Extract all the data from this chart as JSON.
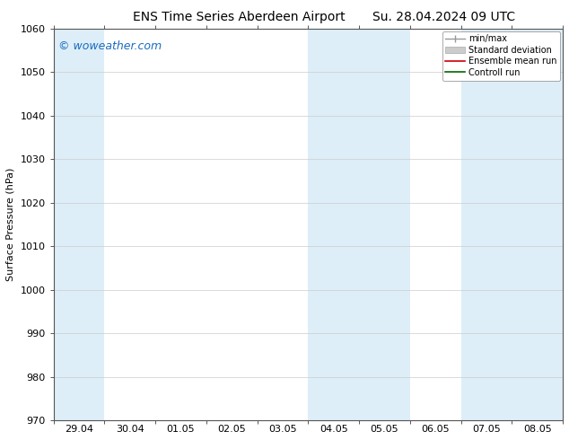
{
  "title_left": "ENS Time Series Aberdeen Airport",
  "title_right": "Su. 28.04.2024 09 UTC",
  "ylabel": "Surface Pressure (hPa)",
  "ylim": [
    970,
    1060
  ],
  "yticks": [
    970,
    980,
    990,
    1000,
    1010,
    1020,
    1030,
    1040,
    1050,
    1060
  ],
  "xtick_labels": [
    "29.04",
    "30.04",
    "01.05",
    "02.05",
    "03.05",
    "04.05",
    "05.05",
    "06.05",
    "07.05",
    "08.05"
  ],
  "shaded_bands": [
    {
      "xmin": 0,
      "xmax": 1,
      "color": "#ddeef8"
    },
    {
      "xmin": 5,
      "xmax": 6,
      "color": "#ddeef8"
    },
    {
      "xmin": 6,
      "xmax": 7,
      "color": "#ddeef8"
    },
    {
      "xmin": 8,
      "xmax": 9,
      "color": "#ddeef8"
    },
    {
      "xmin": 9,
      "xmax": 10,
      "color": "#ddeef8"
    }
  ],
  "watermark": "© woweather.com",
  "watermark_color": "#1a6bbf",
  "legend_entries": [
    {
      "label": "min/max",
      "color": "#aaaaaa",
      "lw": 1.0
    },
    {
      "label": "Standard deviation",
      "color": "#cccccc",
      "lw": 6
    },
    {
      "label": "Ensemble mean run",
      "color": "#cc0000",
      "lw": 1.2
    },
    {
      "label": "Controll run",
      "color": "#006600",
      "lw": 1.2
    }
  ],
  "bg_color": "#ffffff",
  "plot_bg_color": "#ffffff",
  "grid_color": "#cccccc",
  "title_fontsize": 10,
  "axis_fontsize": 8,
  "tick_fontsize": 8
}
